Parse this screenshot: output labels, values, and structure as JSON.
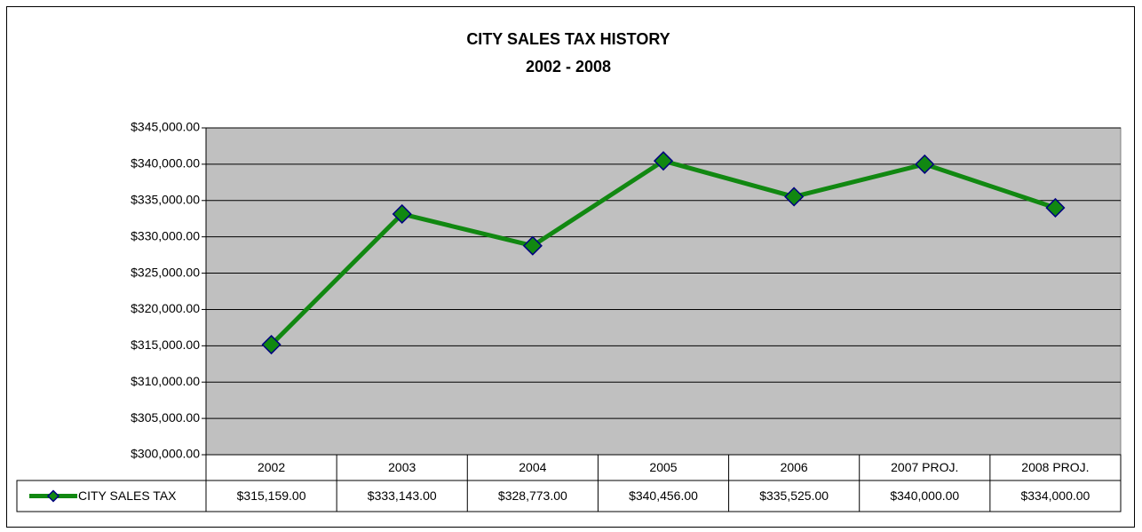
{
  "chart_data": {
    "type": "line",
    "title": "CITY SALES TAX HISTORY",
    "subtitle": "2002 - 2008",
    "categories": [
      "2002",
      "2003",
      "2004",
      "2005",
      "2006",
      "2007 PROJ.",
      "2008 PROJ."
    ],
    "series": [
      {
        "name": "CITY SALES TAX",
        "color": "#118811",
        "marker_edge": "#000080",
        "values": [
          315159,
          333143,
          328773,
          340456,
          335525,
          340000,
          334000
        ],
        "value_labels": [
          "$315,159.00",
          "$333,143.00",
          "$328,773.00",
          "$340,456.00",
          "$335,525.00",
          "$340,000.00",
          "$334,000.00"
        ]
      }
    ],
    "ylim": [
      300000,
      345000
    ],
    "yticks": [
      {
        "value": 300000,
        "label": "$300,000.00"
      },
      {
        "value": 305000,
        "label": "$305,000.00"
      },
      {
        "value": 310000,
        "label": "$310,000.00"
      },
      {
        "value": 315000,
        "label": "$315,000.00"
      },
      {
        "value": 320000,
        "label": "$320,000.00"
      },
      {
        "value": 325000,
        "label": "$325,000.00"
      },
      {
        "value": 330000,
        "label": "$330,000.00"
      },
      {
        "value": 335000,
        "label": "$335,000.00"
      },
      {
        "value": 340000,
        "label": "$340,000.00"
      },
      {
        "value": 345000,
        "label": "$345,000.00"
      }
    ],
    "grid": true,
    "plot_background": "#c0c0c0"
  }
}
